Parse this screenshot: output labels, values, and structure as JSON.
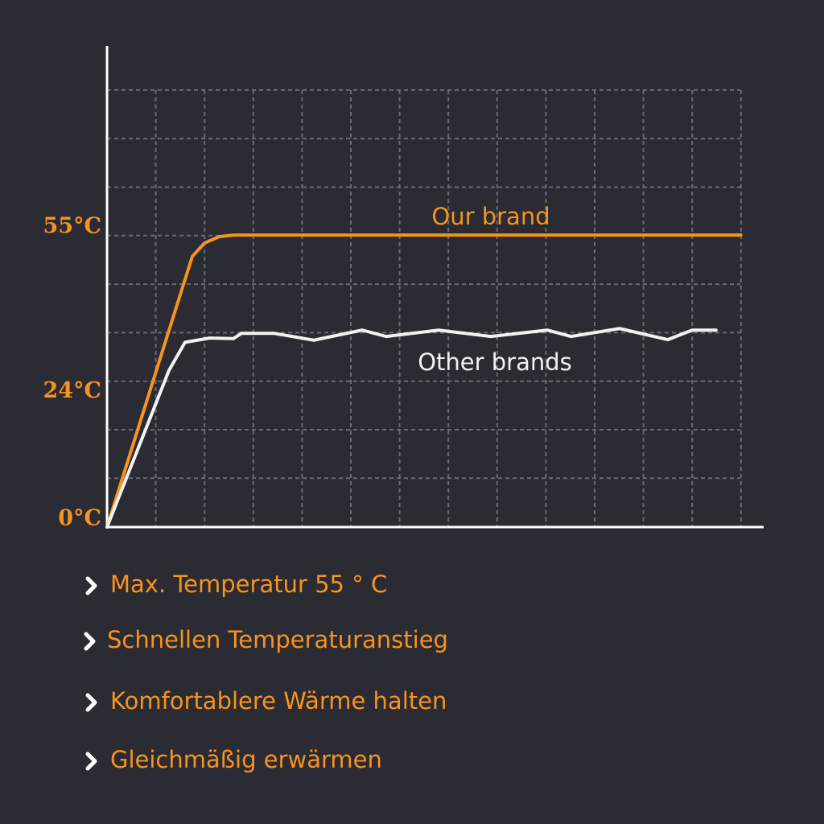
{
  "chart_data": {
    "type": "line",
    "ylim": [
      0,
      82
    ],
    "yticks": [
      {
        "value": 0,
        "label": "0°C"
      },
      {
        "value": 24,
        "label": "24°C"
      },
      {
        "value": 55,
        "label": "55°C"
      }
    ],
    "xlim": [
      0,
      13.45
    ],
    "grid": true,
    "series": [
      {
        "name": "Our brand",
        "color": "#f7931e",
        "x": [
          0,
          1.75,
          2.0,
          2.3,
          2.6,
          13
        ],
        "values": [
          0,
          51,
          53.5,
          54.7,
          55,
          55
        ]
      },
      {
        "name": "Other brands",
        "color": "#f2f2f2",
        "x": [
          0,
          1.27,
          1.6,
          2.1,
          2.59,
          2.76,
          3.42,
          4.24,
          5.23,
          5.73,
          6.8,
          7.87,
          9.03,
          9.52,
          10.51,
          11.5,
          12.0,
          12.49
        ],
        "values": [
          0,
          29.5,
          34.8,
          35.6,
          35.5,
          36.5,
          36.5,
          35.2,
          37.1,
          35.9,
          37.1,
          35.9,
          37.1,
          35.9,
          37.4,
          35.3,
          37.1,
          37.1
        ]
      }
    ]
  },
  "features": [
    "Max. Temperatur 55 ° C",
    "Schnellen Temperaturanstieg",
    "Komfortablere Wärme halten",
    "Gleichmäßig erwärmen"
  ]
}
